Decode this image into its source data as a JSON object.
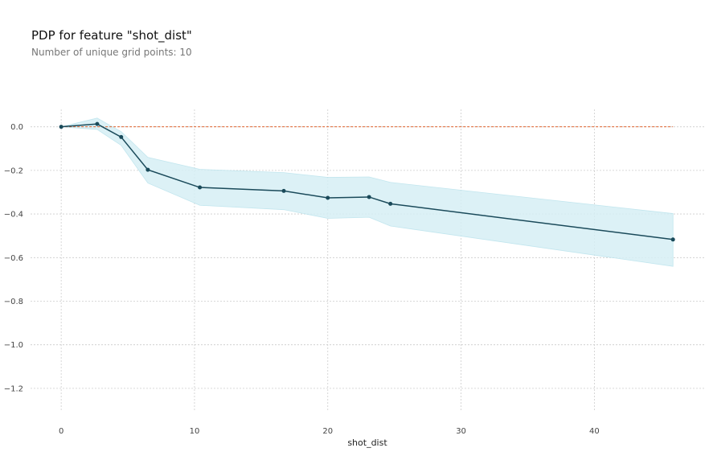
{
  "chart_data": {
    "type": "line",
    "title": "PDP for feature \"shot_dist\"",
    "subtitle": "Number of unique grid points: 10",
    "xlabel": "shot_dist",
    "ylabel": "",
    "xlim": [
      -2.3,
      48.3
    ],
    "ylim": [
      -1.3,
      0.08
    ],
    "x_ticks": [
      0,
      10,
      20,
      30,
      40
    ],
    "y_ticks": [
      0.0,
      -0.2,
      -0.4,
      -0.6,
      -0.8,
      -1.0,
      -1.2
    ],
    "y_tick_labels": [
      "0.0",
      "−0.2",
      "−0.4",
      "−0.6",
      "−0.8",
      "−1.0",
      "−1.2"
    ],
    "grid": true,
    "series": [
      {
        "x": [
          0,
          2.7,
          4.5,
          6.5,
          10.4,
          16.7,
          20.0,
          23.1,
          24.7,
          45.9
        ],
        "y": [
          0.0,
          0.013,
          -0.047,
          -0.197,
          -0.278,
          -0.294,
          -0.326,
          -0.322,
          -0.353,
          -0.517
        ],
        "lower": [
          0.0,
          -0.012,
          -0.085,
          -0.258,
          -0.36,
          -0.38,
          -0.42,
          -0.415,
          -0.455,
          -0.64
        ],
        "upper": [
          0.0,
          0.04,
          -0.022,
          -0.14,
          -0.195,
          -0.21,
          -0.232,
          -0.23,
          -0.255,
          -0.398
        ]
      }
    ],
    "reference_line": {
      "y": 0.0
    },
    "colors": {
      "line": "#1a4a5a",
      "band": "#d6eff5",
      "band_edge": "#b8e2ec",
      "reference": "#e0642f",
      "grid": "#cccccc"
    }
  }
}
